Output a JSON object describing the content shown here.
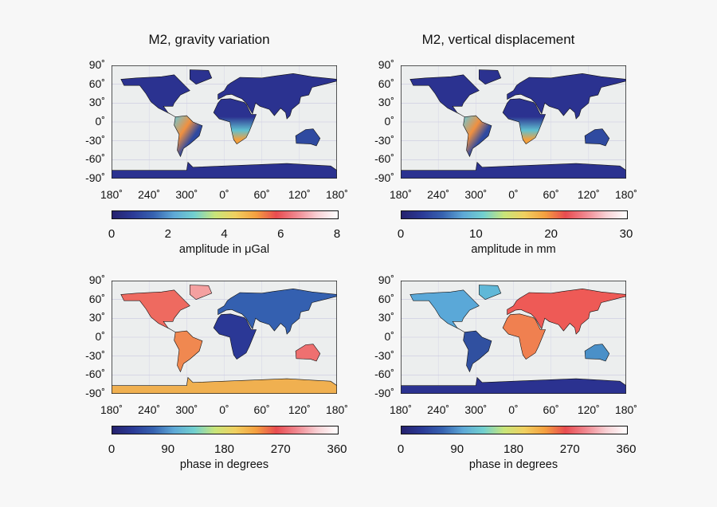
{
  "colormap": [
    "#26226e",
    "#2b3a96",
    "#3762b0",
    "#5ea8d6",
    "#72d0cf",
    "#c8e57a",
    "#f0d060",
    "#f4a040",
    "#e84c50",
    "#f08890",
    "#f8d0d4",
    "#ffffff"
  ],
  "lat_ticks": [
    "90˚",
    "60˚",
    "30˚",
    "0˚",
    "-30˚",
    "-60˚",
    "-90˚"
  ],
  "lon_ticks": [
    "180˚",
    "240˚",
    "300˚",
    "0˚",
    "60˚",
    "120˚",
    "180˚"
  ],
  "panels": [
    {
      "title": "M2, gravity variation",
      "colorbar": {
        "label": "amplitude in μGal",
        "ticks": [
          "0",
          "2",
          "4",
          "6",
          "8"
        ],
        "range": [
          0,
          8
        ]
      }
    },
    {
      "title": "M2, vertical displacement",
      "colorbar": {
        "label": "amplitude in mm",
        "ticks": [
          "0",
          "10",
          "20",
          "30"
        ],
        "range": [
          0,
          30
        ]
      }
    },
    {
      "title": "",
      "colorbar": {
        "label": "phase in degrees",
        "ticks": [
          "0",
          "90",
          "180",
          "270",
          "360"
        ],
        "range": [
          0,
          360
        ]
      }
    },
    {
      "title": "",
      "colorbar": {
        "label": "phase in degrees",
        "ticks": [
          "0",
          "90",
          "180",
          "270",
          "360"
        ],
        "range": [
          0,
          360
        ]
      }
    }
  ]
}
